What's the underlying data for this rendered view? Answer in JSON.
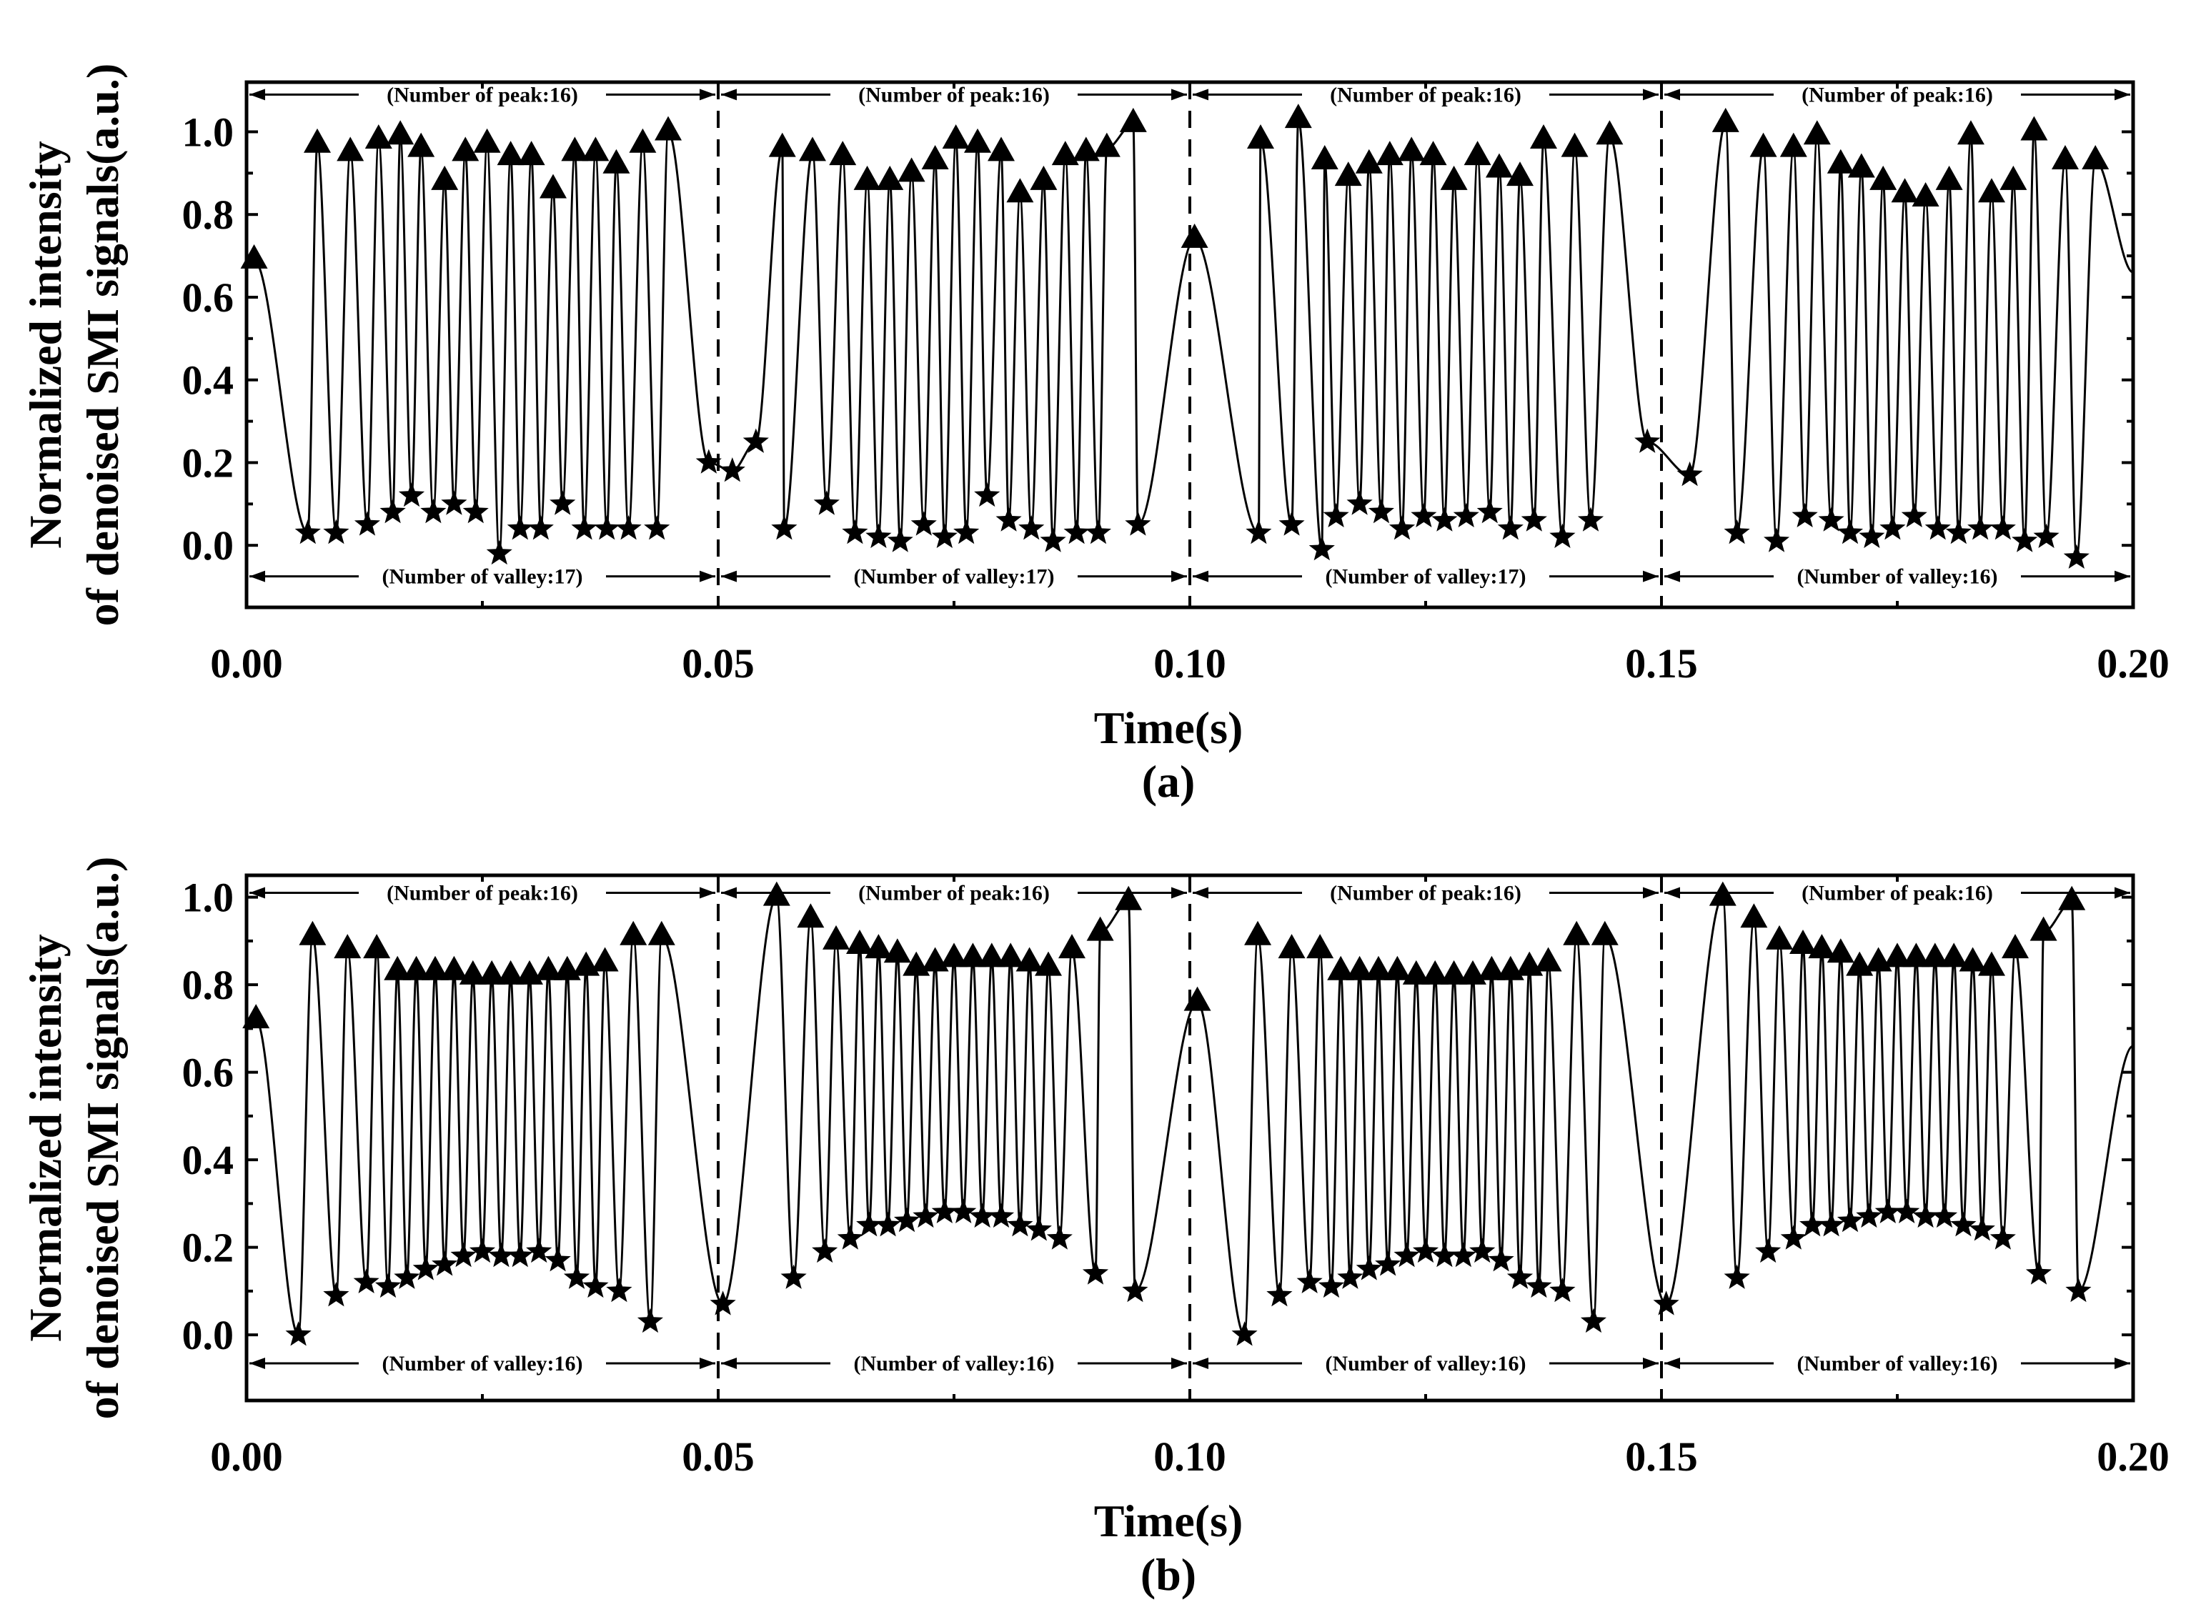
{
  "chart_data": [
    {
      "type": "line",
      "panel_label": "(a)",
      "xlabel": "Time(s)",
      "ylabel_line1": "Normalized intensity",
      "ylabel_line2": "of denoised SMI signals(a.u.)",
      "xlim": [
        0.0,
        0.2
      ],
      "ylim": [
        -0.15,
        1.12
      ],
      "xticks": [
        "0.00",
        "0.05",
        "0.10",
        "0.15",
        "0.20"
      ],
      "yticks": [
        "0.0",
        "0.2",
        "0.4",
        "0.6",
        "0.8",
        "1.0"
      ],
      "dividers": [
        0.05,
        0.1,
        0.15
      ],
      "segments": [
        {
          "peak_label": "(Number of peak:16)",
          "valley_label": "(Number of valley:17)"
        },
        {
          "peak_label": "(Number of peak:16)",
          "valley_label": "(Number of valley:17)"
        },
        {
          "peak_label": "(Number of peak:16)",
          "valley_label": "(Number of valley:17)"
        },
        {
          "peak_label": "(Number of peak:16)",
          "valley_label": "(Number of valley:16)"
        }
      ],
      "peak_label_y": 1.09,
      "valley_label_y": -0.075,
      "series": [
        {
          "name": "peaks",
          "marker": "triangle",
          "x": [
            0.0008,
            0.0075,
            0.011,
            0.014,
            0.0163,
            0.0185,
            0.021,
            0.0232,
            0.0255,
            0.028,
            0.0302,
            0.0325,
            0.0348,
            0.037,
            0.0392,
            0.042,
            0.0447,
            0.0568,
            0.06,
            0.0632,
            0.0658,
            0.0682,
            0.0705,
            0.073,
            0.0752,
            0.0775,
            0.08,
            0.082,
            0.0845,
            0.0868,
            0.089,
            0.0912,
            0.094,
            0.1005,
            0.1075,
            0.1115,
            0.1143,
            0.1168,
            0.119,
            0.1212,
            0.1235,
            0.1258,
            0.128,
            0.1305,
            0.1328,
            0.135,
            0.1375,
            0.1408,
            0.1445,
            0.1568,
            0.1608,
            0.164,
            0.1665,
            0.169,
            0.1712,
            0.1735,
            0.1758,
            0.178,
            0.1805,
            0.1828,
            0.185,
            0.1873,
            0.1895,
            0.1928,
            0.196
          ],
          "y": [
            0.69,
            0.97,
            0.95,
            0.98,
            0.99,
            0.96,
            0.88,
            0.95,
            0.97,
            0.94,
            0.94,
            0.86,
            0.95,
            0.95,
            0.92,
            0.97,
            1.0,
            0.96,
            0.95,
            0.94,
            0.88,
            0.88,
            0.9,
            0.93,
            0.98,
            0.97,
            0.95,
            0.85,
            0.88,
            0.94,
            0.95,
            0.96,
            1.02,
            0.74,
            0.98,
            1.03,
            0.93,
            0.89,
            0.92,
            0.94,
            0.95,
            0.94,
            0.88,
            0.94,
            0.91,
            0.89,
            0.98,
            0.96,
            0.99,
            1.02,
            0.96,
            0.96,
            0.99,
            0.92,
            0.91,
            0.88,
            0.85,
            0.84,
            0.88,
            0.99,
            0.85,
            0.88,
            1.0,
            0.93,
            0.93
          ]
        },
        {
          "name": "valleys",
          "marker": "star",
          "x": [
            0.0065,
            0.0095,
            0.0128,
            0.0155,
            0.0175,
            0.0198,
            0.022,
            0.0243,
            0.0268,
            0.029,
            0.0312,
            0.0335,
            0.0358,
            0.0382,
            0.0405,
            0.0435,
            0.049,
            0.0515,
            0.054,
            0.057,
            0.0615,
            0.0645,
            0.067,
            0.0693,
            0.0718,
            0.074,
            0.0763,
            0.0785,
            0.0808,
            0.0832,
            0.0855,
            0.088,
            0.0903,
            0.0945,
            0.1073,
            0.1108,
            0.114,
            0.1155,
            0.118,
            0.1203,
            0.1225,
            0.1248,
            0.127,
            0.1293,
            0.1318,
            0.134,
            0.1365,
            0.1395,
            0.1425,
            0.1485,
            0.153,
            0.158,
            0.1622,
            0.1652,
            0.168,
            0.17,
            0.1723,
            0.1745,
            0.1768,
            0.1793,
            0.1815,
            0.1838,
            0.1862,
            0.1885,
            0.1908,
            0.194
          ],
          "y": [
            0.03,
            0.03,
            0.05,
            0.08,
            0.12,
            0.08,
            0.1,
            0.08,
            -0.02,
            0.04,
            0.04,
            0.1,
            0.04,
            0.04,
            0.04,
            0.04,
            0.2,
            0.18,
            0.25,
            0.04,
            0.1,
            0.03,
            0.02,
            0.01,
            0.05,
            0.02,
            0.03,
            0.12,
            0.06,
            0.04,
            0.01,
            0.03,
            0.03,
            0.05,
            0.03,
            0.05,
            -0.01,
            0.07,
            0.1,
            0.08,
            0.04,
            0.07,
            0.06,
            0.07,
            0.08,
            0.04,
            0.06,
            0.02,
            0.06,
            0.25,
            0.17,
            0.03,
            0.01,
            0.07,
            0.06,
            0.03,
            0.02,
            0.04,
            0.07,
            0.04,
            0.03,
            0.04,
            0.04,
            0.01,
            0.02,
            -0.03
          ]
        }
      ]
    },
    {
      "type": "line",
      "panel_label": "(b)",
      "xlabel": "Time(s)",
      "ylabel_line1": "Normalized intensity",
      "ylabel_line2": "of denoised SMI signals(a.u.)",
      "xlim": [
        0.0,
        0.2
      ],
      "ylim": [
        -0.15,
        1.05
      ],
      "xticks": [
        "0.00",
        "0.05",
        "0.10",
        "0.15",
        "0.20"
      ],
      "yticks": [
        "0.0",
        "0.2",
        "0.4",
        "0.6",
        "0.8",
        "1.0"
      ],
      "dividers": [
        0.05,
        0.1,
        0.15
      ],
      "segments": [
        {
          "peak_label": "(Number of peak:16)",
          "valley_label": "(Number of valley:16)"
        },
        {
          "peak_label": "(Number of peak:16)",
          "valley_label": "(Number of valley:16)"
        },
        {
          "peak_label": "(Number of peak:16)",
          "valley_label": "(Number of valley:16)"
        },
        {
          "peak_label": "(Number of peak:16)",
          "valley_label": "(Number of valley:16)"
        }
      ],
      "peak_label_y": 1.01,
      "valley_label_y": -0.065,
      "series": [
        {
          "name": "peaks",
          "marker": "triangle",
          "x": [
            0.001,
            0.007,
            0.0107,
            0.0138,
            0.016,
            0.018,
            0.02,
            0.022,
            0.024,
            0.026,
            0.028,
            0.03,
            0.032,
            0.034,
            0.036,
            0.038,
            0.041,
            0.044,
            0.0562,
            0.0598,
            0.0625,
            0.065,
            0.067,
            0.069,
            0.071,
            0.073,
            0.075,
            0.077,
            0.079,
            0.081,
            0.083,
            0.085,
            0.0875,
            0.0905,
            0.0935,
            0.1008,
            0.1072,
            0.1108,
            0.1138,
            0.116,
            0.118,
            0.12,
            0.122,
            0.124,
            0.126,
            0.128,
            0.13,
            0.132,
            0.134,
            0.136,
            0.138,
            0.141,
            0.144,
            0.1565,
            0.1598,
            0.1625,
            0.165,
            0.167,
            0.169,
            0.171,
            0.173,
            0.175,
            0.177,
            0.179,
            0.181,
            0.183,
            0.185,
            0.1875,
            0.1905,
            0.1935
          ],
          "y": [
            0.72,
            0.91,
            0.88,
            0.88,
            0.83,
            0.83,
            0.83,
            0.83,
            0.82,
            0.82,
            0.82,
            0.82,
            0.83,
            0.83,
            0.84,
            0.85,
            0.91,
            0.91,
            1.0,
            0.95,
            0.9,
            0.89,
            0.88,
            0.87,
            0.84,
            0.85,
            0.86,
            0.86,
            0.86,
            0.86,
            0.85,
            0.84,
            0.88,
            0.92,
            0.99,
            0.76,
            0.91,
            0.88,
            0.88,
            0.83,
            0.83,
            0.83,
            0.83,
            0.82,
            0.82,
            0.82,
            0.82,
            0.83,
            0.83,
            0.84,
            0.85,
            0.91,
            0.91,
            1.0,
            0.95,
            0.9,
            0.89,
            0.88,
            0.87,
            0.84,
            0.85,
            0.86,
            0.86,
            0.86,
            0.86,
            0.85,
            0.84,
            0.88,
            0.92,
            0.99
          ]
        },
        {
          "name": "valleys",
          "marker": "star",
          "x": [
            0.0055,
            0.0095,
            0.0127,
            0.015,
            0.017,
            0.019,
            0.021,
            0.023,
            0.025,
            0.027,
            0.029,
            0.031,
            0.033,
            0.035,
            0.037,
            0.0395,
            0.0428,
            0.0505,
            0.058,
            0.0613,
            0.064,
            0.066,
            0.068,
            0.07,
            0.072,
            0.074,
            0.076,
            0.078,
            0.08,
            0.082,
            0.084,
            0.0862,
            0.09,
            0.0942,
            0.1058,
            0.1095,
            0.1127,
            0.115,
            0.117,
            0.119,
            0.121,
            0.123,
            0.125,
            0.127,
            0.129,
            0.131,
            0.133,
            0.135,
            0.137,
            0.1395,
            0.1428,
            0.1505,
            0.158,
            0.1613,
            0.164,
            0.166,
            0.168,
            0.17,
            0.172,
            0.174,
            0.176,
            0.178,
            0.18,
            0.182,
            0.184,
            0.1862,
            0.19,
            0.1942
          ],
          "y": [
            0.0,
            0.09,
            0.12,
            0.11,
            0.13,
            0.15,
            0.16,
            0.18,
            0.19,
            0.18,
            0.18,
            0.19,
            0.17,
            0.13,
            0.11,
            0.1,
            0.03,
            0.07,
            0.13,
            0.19,
            0.22,
            0.25,
            0.25,
            0.26,
            0.27,
            0.28,
            0.28,
            0.27,
            0.27,
            0.25,
            0.24,
            0.22,
            0.14,
            0.1,
            0.0,
            0.09,
            0.12,
            0.11,
            0.13,
            0.15,
            0.16,
            0.18,
            0.19,
            0.18,
            0.18,
            0.19,
            0.17,
            0.13,
            0.11,
            0.1,
            0.03,
            0.07,
            0.13,
            0.19,
            0.22,
            0.25,
            0.25,
            0.26,
            0.27,
            0.28,
            0.28,
            0.27,
            0.27,
            0.25,
            0.24,
            0.22,
            0.14,
            0.1
          ]
        }
      ]
    }
  ]
}
